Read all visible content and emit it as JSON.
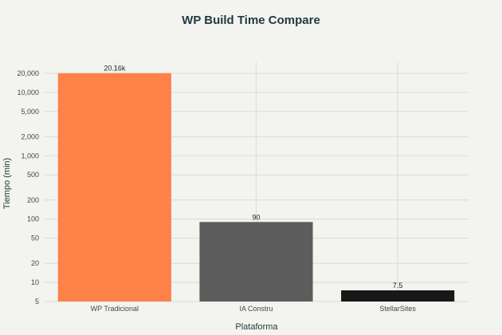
{
  "chart_data": {
    "type": "bar",
    "title": "WP Build Time Compare",
    "xlabel": "Plataforma",
    "ylabel": "Tiempo (min)",
    "yscale": "log",
    "ylim": [
      5,
      30000
    ],
    "categories": [
      "WP Tradicional",
      "IA Constru",
      "StellarSites"
    ],
    "values": [
      20160,
      90,
      7.5
    ],
    "value_labels": [
      "20.16k",
      "90",
      "7.5"
    ],
    "colors": [
      "#fe8148",
      "#5c5c5c",
      "#181818"
    ],
    "yticks": [
      5,
      10,
      20,
      50,
      100,
      200,
      500,
      1000,
      2000,
      5000,
      10000,
      20000
    ],
    "ytick_labels": [
      "5",
      "10",
      "20",
      "50",
      "100",
      "200",
      "500",
      "1,000",
      "2,000",
      "5,000",
      "10,000",
      "20,000"
    ],
    "grid": true,
    "legend": "none"
  }
}
